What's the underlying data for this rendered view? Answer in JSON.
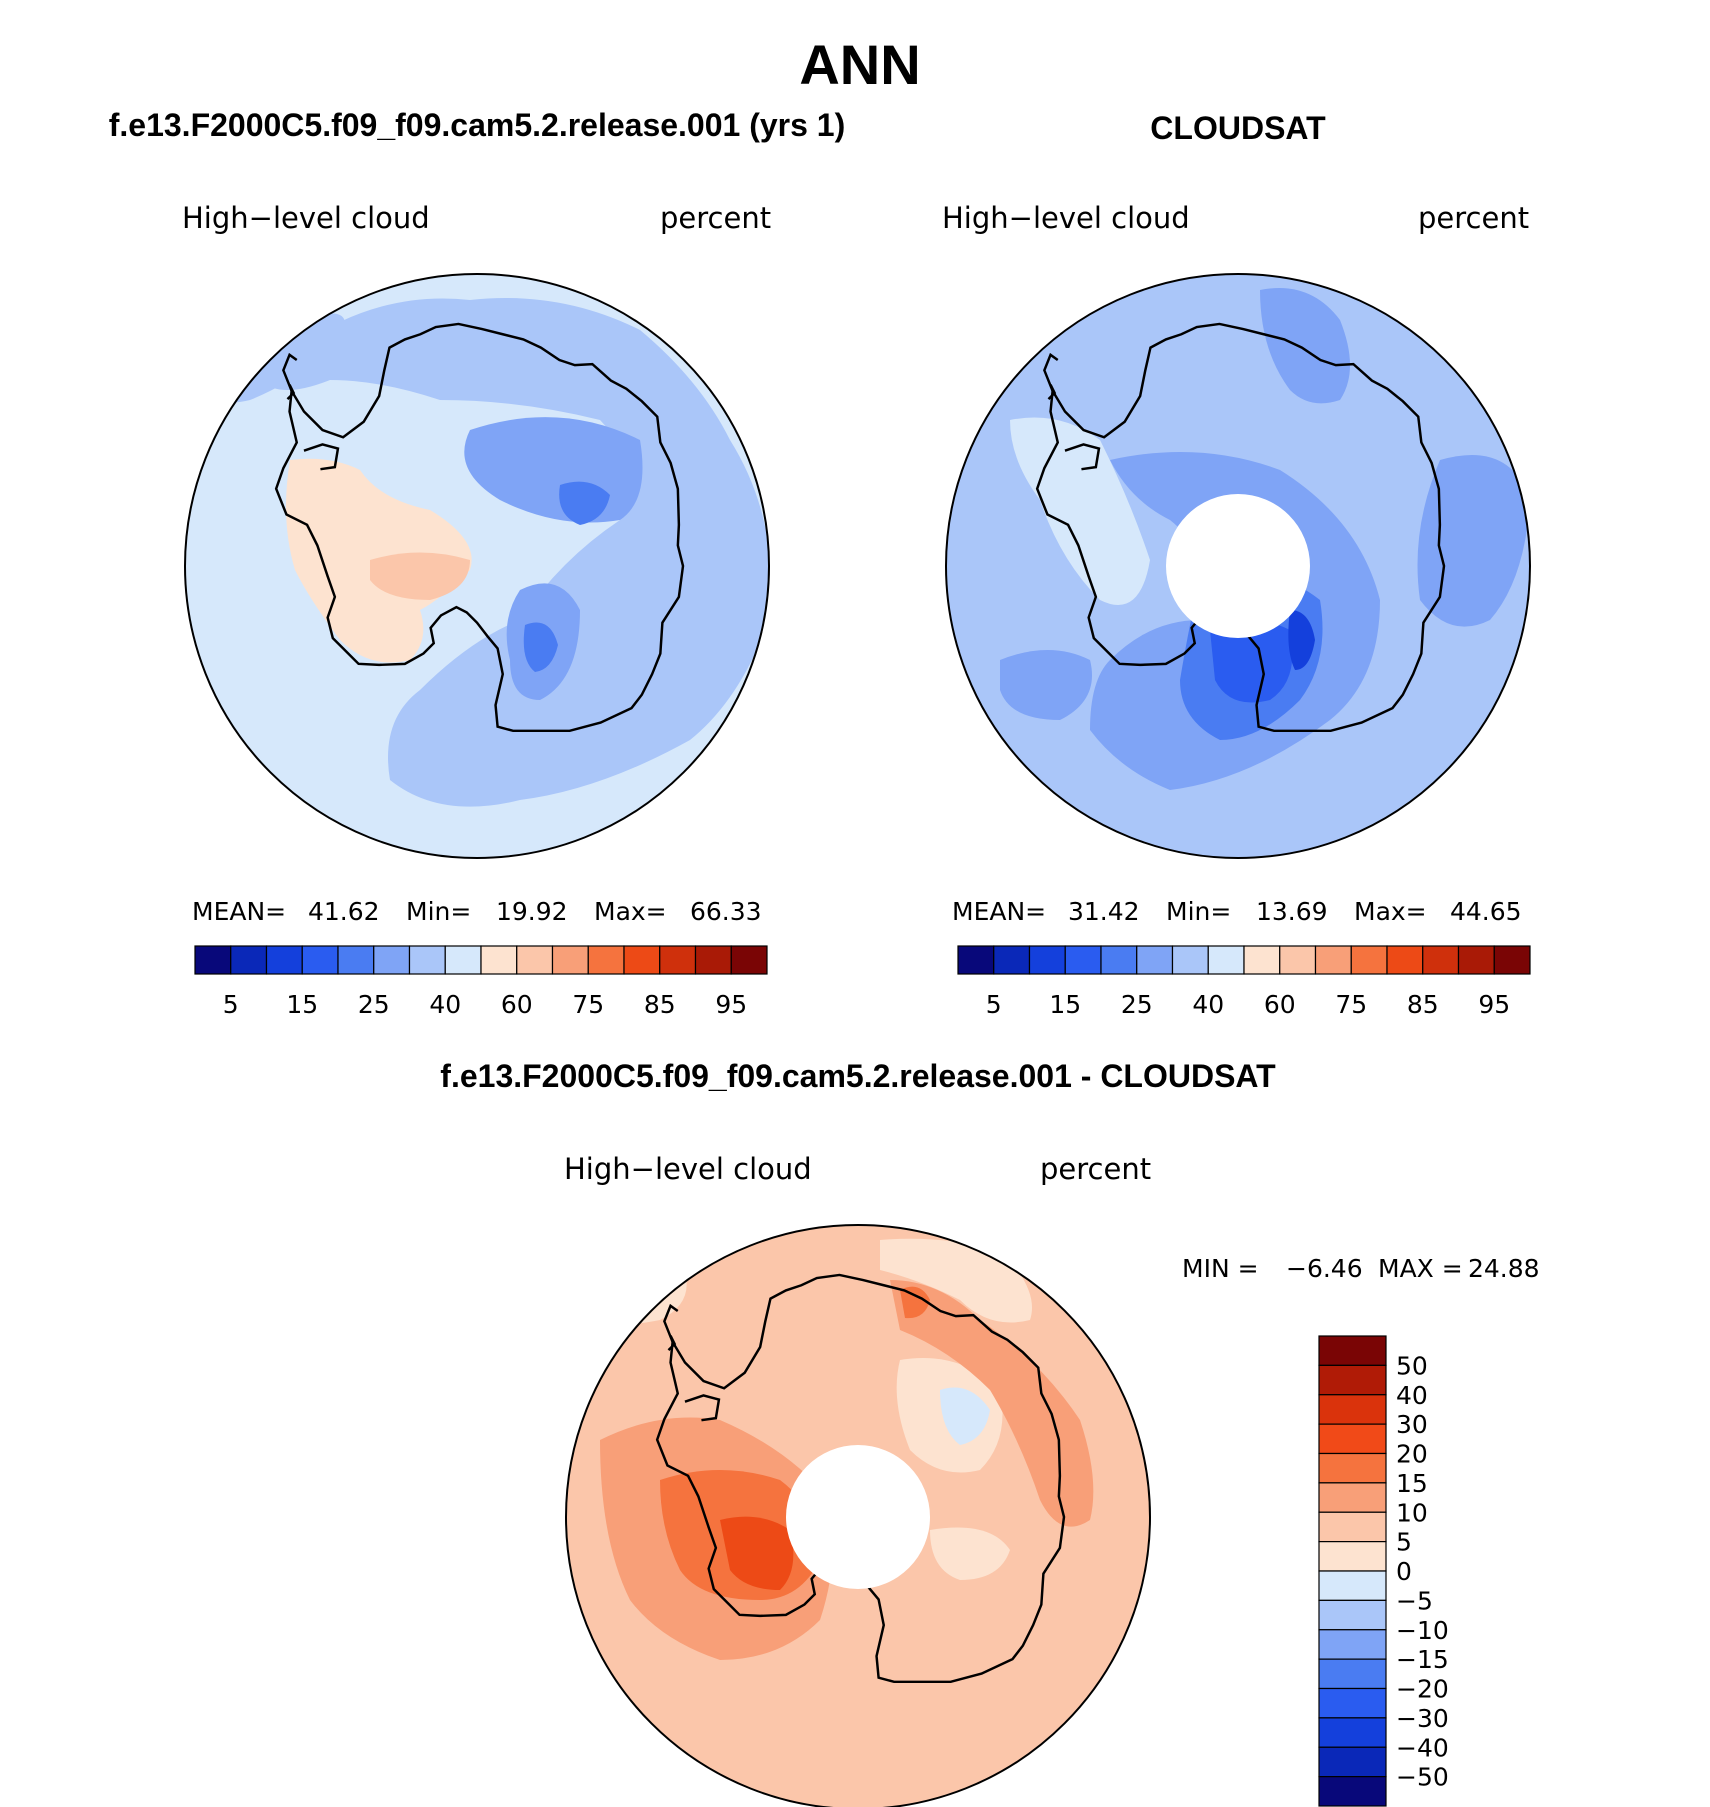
{
  "figure": {
    "title": "ANN"
  },
  "panels": [
    {
      "case_title": "f.e13.F2000C5.f09_f09.cam5.2.release.001 (yrs 1)",
      "variable": "High−level cloud",
      "units": "percent",
      "stats": {
        "mean_label": "MEAN=",
        "mean": "41.62",
        "min_label": "Min=",
        "min": "19.92",
        "max_label": "Max=",
        "max": "66.33"
      },
      "colorbar_ticks": [
        "5",
        "15",
        "25",
        "40",
        "60",
        "75",
        "85",
        "95"
      ],
      "has_polar_gap": false
    },
    {
      "case_title": "CLOUDSAT",
      "variable": "High−level cloud",
      "units": "percent",
      "stats": {
        "mean_label": "MEAN=",
        "mean": "31.42",
        "min_label": "Min=",
        "min": "13.69",
        "max_label": "Max=",
        "max": "44.65"
      },
      "colorbar_ticks": [
        "5",
        "15",
        "25",
        "40",
        "60",
        "75",
        "85",
        "95"
      ],
      "has_polar_gap": true
    }
  ],
  "diff_panel": {
    "case_title": "f.e13.F2000C5.f09_f09.cam5.2.release.001 - CLOUDSAT",
    "variable": "High−level cloud",
    "units": "percent",
    "stats": {
      "min_label": "MIN =",
      "min": "−6.46",
      "max_label": "MAX =",
      "max": "24.88"
    },
    "colorbar_ticks": [
      "50",
      "40",
      "30",
      "20",
      "15",
      "10",
      "5",
      "0",
      "−5",
      "−10",
      "−15",
      "−20",
      "−30",
      "−40",
      "−50"
    ],
    "has_polar_gap": true
  },
  "colors": {
    "abs_scale": [
      "#08087a",
      "#0a28b8",
      "#1440dc",
      "#2a5cf0",
      "#4a7cf2",
      "#7fa4f6",
      "#aac6f9",
      "#d6e8fb",
      "#fde3d0",
      "#fbc6aa",
      "#f89f78",
      "#f5733e",
      "#ed4a16",
      "#cf300c",
      "#a91a06",
      "#7a0505"
    ],
    "diff_scale": [
      "#7a0505",
      "#b01b06",
      "#da330c",
      "#f14a18",
      "#f5733e",
      "#f89f78",
      "#fbc6aa",
      "#fde3d0",
      "#d6e8fb",
      "#aac6f9",
      "#7fa4f6",
      "#4a7cf2",
      "#2a5cf0",
      "#1440dc",
      "#0a28b8",
      "#08087a"
    ],
    "coastline": "#000000"
  }
}
